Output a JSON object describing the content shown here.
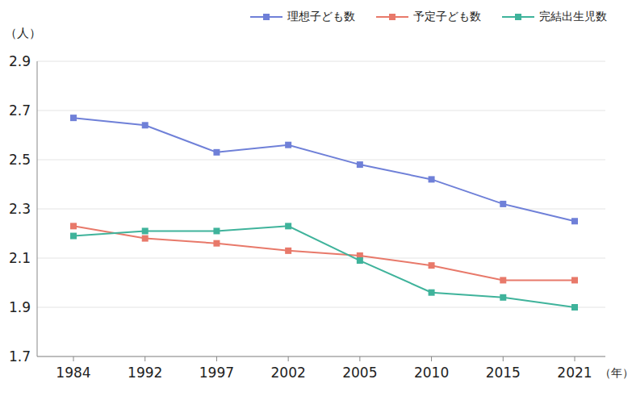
{
  "chart_data": {
    "type": "line",
    "ylabel": "（人）",
    "xlabel": "（年）",
    "categories": [
      "1984",
      "1992",
      "1997",
      "2002",
      "2005",
      "2010",
      "2015",
      "2021"
    ],
    "series": [
      {
        "name": "理想子ども数",
        "color": "#6f80d8",
        "values": [
          2.67,
          2.64,
          2.53,
          2.56,
          2.48,
          2.42,
          2.32,
          2.25
        ]
      },
      {
        "name": "予定子ども数",
        "color": "#e8796a",
        "values": [
          2.23,
          2.18,
          2.16,
          2.13,
          2.11,
          2.07,
          2.01,
          2.01
        ]
      },
      {
        "name": "完結出生児数",
        "color": "#3fb39b",
        "values": [
          2.19,
          2.21,
          2.21,
          2.23,
          2.09,
          1.96,
          1.94,
          1.9
        ]
      }
    ],
    "ylim": [
      1.7,
      2.9
    ],
    "yticks": [
      1.7,
      1.9,
      2.1,
      2.3,
      2.5,
      2.7,
      2.9
    ],
    "grid": true,
    "legend": "top-right",
    "marker": "square"
  }
}
